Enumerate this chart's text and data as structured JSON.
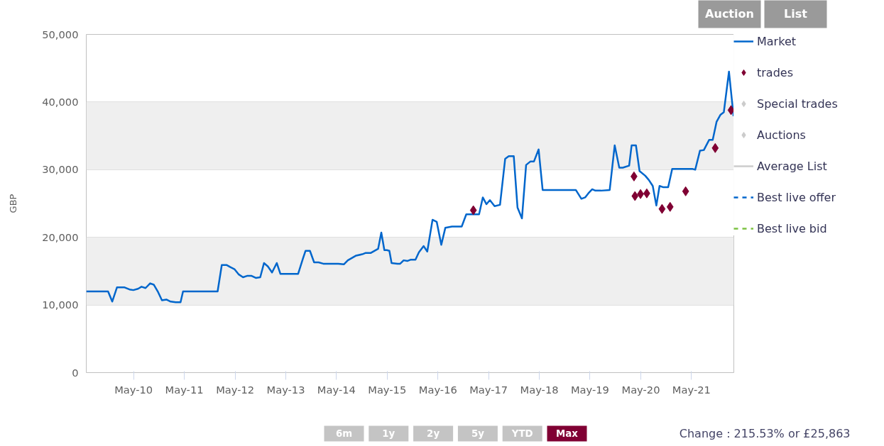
{
  "chart_data": {
    "type": "line",
    "ylabel": "GBP",
    "xlim": [
      "2009-05-25",
      "2022-03-02"
    ],
    "ylim": [
      0,
      50000
    ],
    "xticks": [
      {
        "value": "2010-05-01",
        "label": "May-10"
      },
      {
        "value": "2011-05-01",
        "label": "May-11"
      },
      {
        "value": "2012-05-01",
        "label": "May-12"
      },
      {
        "value": "2013-05-01",
        "label": "May-13"
      },
      {
        "value": "2014-05-01",
        "label": "May-14"
      },
      {
        "value": "2015-05-01",
        "label": "May-15"
      },
      {
        "value": "2016-05-01",
        "label": "May-16"
      },
      {
        "value": "2017-05-01",
        "label": "May-17"
      },
      {
        "value": "2018-05-01",
        "label": "May-18"
      },
      {
        "value": "2019-05-01",
        "label": "May-19"
      },
      {
        "value": "2020-05-01",
        "label": "May-20"
      },
      {
        "value": "2021-05-01",
        "label": "May-21"
      }
    ],
    "yticks": [
      0,
      {
        "value": 10000,
        "label": "10,000"
      },
      {
        "value": 20000,
        "label": "20,000"
      },
      {
        "value": 30000,
        "label": "30,000"
      },
      {
        "value": 40000,
        "label": "40,000"
      },
      {
        "value": 50000,
        "label": "50,000"
      }
    ],
    "grid": "y",
    "legend": "right",
    "series": [
      {
        "name": "Market",
        "color": "#0066cc",
        "line_style": "solid",
        "x": [
          "2009-05-25",
          "2009-10-29",
          "2009-11-28",
          "2010-01-01",
          "2010-02-25",
          "2010-04-01",
          "2010-04-29",
          "2010-06-02",
          "2010-06-27",
          "2010-07-26",
          "2010-08-28",
          "2010-09-23",
          "2010-10-22",
          "2010-11-21",
          "2010-12-23",
          "2011-01-22",
          "2011-02-28",
          "2011-04-04",
          "2011-04-22",
          "2011-12-27",
          "2012-01-26",
          "2012-03-02",
          "2012-03-27",
          "2012-04-26",
          "2012-05-28",
          "2012-06-27",
          "2012-07-26",
          "2012-08-28",
          "2012-09-27",
          "2012-10-29",
          "2012-11-25",
          "2012-12-23",
          "2013-01-22",
          "2013-02-25",
          "2013-03-23",
          "2013-06-16",
          "2013-07-29",
          "2013-09-02",
          "2013-09-20",
          "2013-10-22",
          "2013-11-21",
          "2013-12-23",
          "2014-01-26",
          "2014-05-14",
          "2014-06-23",
          "2014-07-22",
          "2014-09-20",
          "2014-11-03",
          "2014-11-28",
          "2015-01-04",
          "2015-02-07",
          "2015-02-25",
          "2015-03-20",
          "2015-04-11",
          "2015-04-29",
          "2015-05-17",
          "2015-06-02",
          "2015-07-15",
          "2015-08-03",
          "2015-08-28",
          "2015-09-23",
          "2015-10-19",
          "2015-11-21",
          "2015-12-16",
          "2016-01-19",
          "2016-02-14",
          "2016-03-23",
          "2016-04-22",
          "2016-05-25",
          "2016-06-23",
          "2016-08-10",
          "2016-09-23",
          "2016-10-19",
          "2016-11-21",
          "2017-02-21",
          "2017-03-20",
          "2017-04-15",
          "2017-05-10",
          "2017-06-13",
          "2017-07-22",
          "2017-08-28",
          "2017-09-23",
          "2017-10-29",
          "2017-11-25",
          "2017-12-27",
          "2018-01-26",
          "2018-02-25",
          "2018-03-23",
          "2018-04-26",
          "2018-05-25",
          "2018-10-08",
          "2019-01-19",
          "2019-02-28",
          "2019-03-27",
          "2019-04-19",
          "2019-05-17",
          "2019-06-09",
          "2019-07-19",
          "2019-09-20",
          "2019-10-26",
          "2019-11-28",
          "2019-12-23",
          "2020-02-07",
          "2020-02-25",
          "2020-03-27",
          "2020-04-22",
          "2020-06-02",
          "2020-06-27",
          "2020-07-26",
          "2020-08-21",
          "2020-09-13",
          "2020-10-11",
          "2020-11-14",
          "2020-12-13",
          "2021-01-29",
          "2021-05-10",
          "2021-05-28",
          "2021-07-01",
          "2021-07-29",
          "2021-09-05",
          "2021-10-01",
          "2021-10-29",
          "2021-11-25",
          "2021-12-20",
          "2022-01-26",
          "2022-02-28"
        ],
        "values": [
          12000,
          12000,
          10500,
          12600,
          12600,
          12300,
          12200,
          12400,
          12700,
          12500,
          13200,
          13000,
          12000,
          10700,
          10800,
          10500,
          10400,
          10400,
          12000,
          12000,
          15900,
          15900,
          15600,
          15300,
          14500,
          14100,
          14300,
          14300,
          14000,
          14100,
          16200,
          15700,
          14800,
          16200,
          14600,
          14600,
          14600,
          16900,
          18000,
          18000,
          16300,
          16300,
          16100,
          16100,
          16000,
          16600,
          17300,
          17500,
          17700,
          17700,
          18100,
          18300,
          20700,
          18100,
          18100,
          18000,
          16200,
          16100,
          16100,
          16600,
          16500,
          16700,
          16700,
          17800,
          18700,
          17900,
          22600,
          22300,
          18900,
          21400,
          21600,
          21600,
          21600,
          23400,
          23400,
          25900,
          24900,
          25500,
          24600,
          24800,
          31600,
          32000,
          32000,
          24400,
          22800,
          30700,
          31200,
          31200,
          33000,
          27000,
          27000,
          27000,
          25700,
          25900,
          26500,
          27100,
          26900,
          26900,
          27000,
          33600,
          30300,
          30300,
          30600,
          33600,
          33600,
          29800,
          29100,
          28500,
          27600,
          24700,
          27600,
          27400,
          27400,
          30100,
          30100,
          30100,
          30000,
          32800,
          32900,
          34400,
          34400,
          37100,
          38100,
          38500,
          44500,
          37900
        ]
      },
      {
        "name": "trades",
        "type": "scatter",
        "color": "#800033",
        "marker": "diamond",
        "x": [
          "2017-01-11",
          "2020-03-13",
          "2020-03-20",
          "2020-04-29",
          "2020-06-13",
          "2020-10-01",
          "2020-11-28",
          "2021-03-20",
          "2021-10-19",
          "2022-02-10"
        ],
        "values": [
          24000,
          29000,
          26100,
          26400,
          26500,
          24200,
          24500,
          26800,
          33200,
          38800
        ]
      },
      {
        "name": "Special trades",
        "type": "scatter",
        "color": "#cccccc",
        "marker": "diamond"
      },
      {
        "name": "Auctions",
        "type": "scatter",
        "color": "#cccccc",
        "marker": "diamond"
      },
      {
        "name": "Average List",
        "type": "line",
        "color": "#cccccc",
        "line_style": "solid"
      },
      {
        "name": "Best live offer",
        "type": "line",
        "color": "#0066cc",
        "line_style": "dashed"
      },
      {
        "name": "Best live bid",
        "type": "line",
        "color": "#7cc242",
        "line_style": "dashed"
      }
    ],
    "annotations": [
      "Auction",
      "List",
      "6m",
      "1y",
      "2y",
      "5y",
      "YTD",
      "Max",
      "Change : 215.53% or £25,863"
    ]
  }
}
